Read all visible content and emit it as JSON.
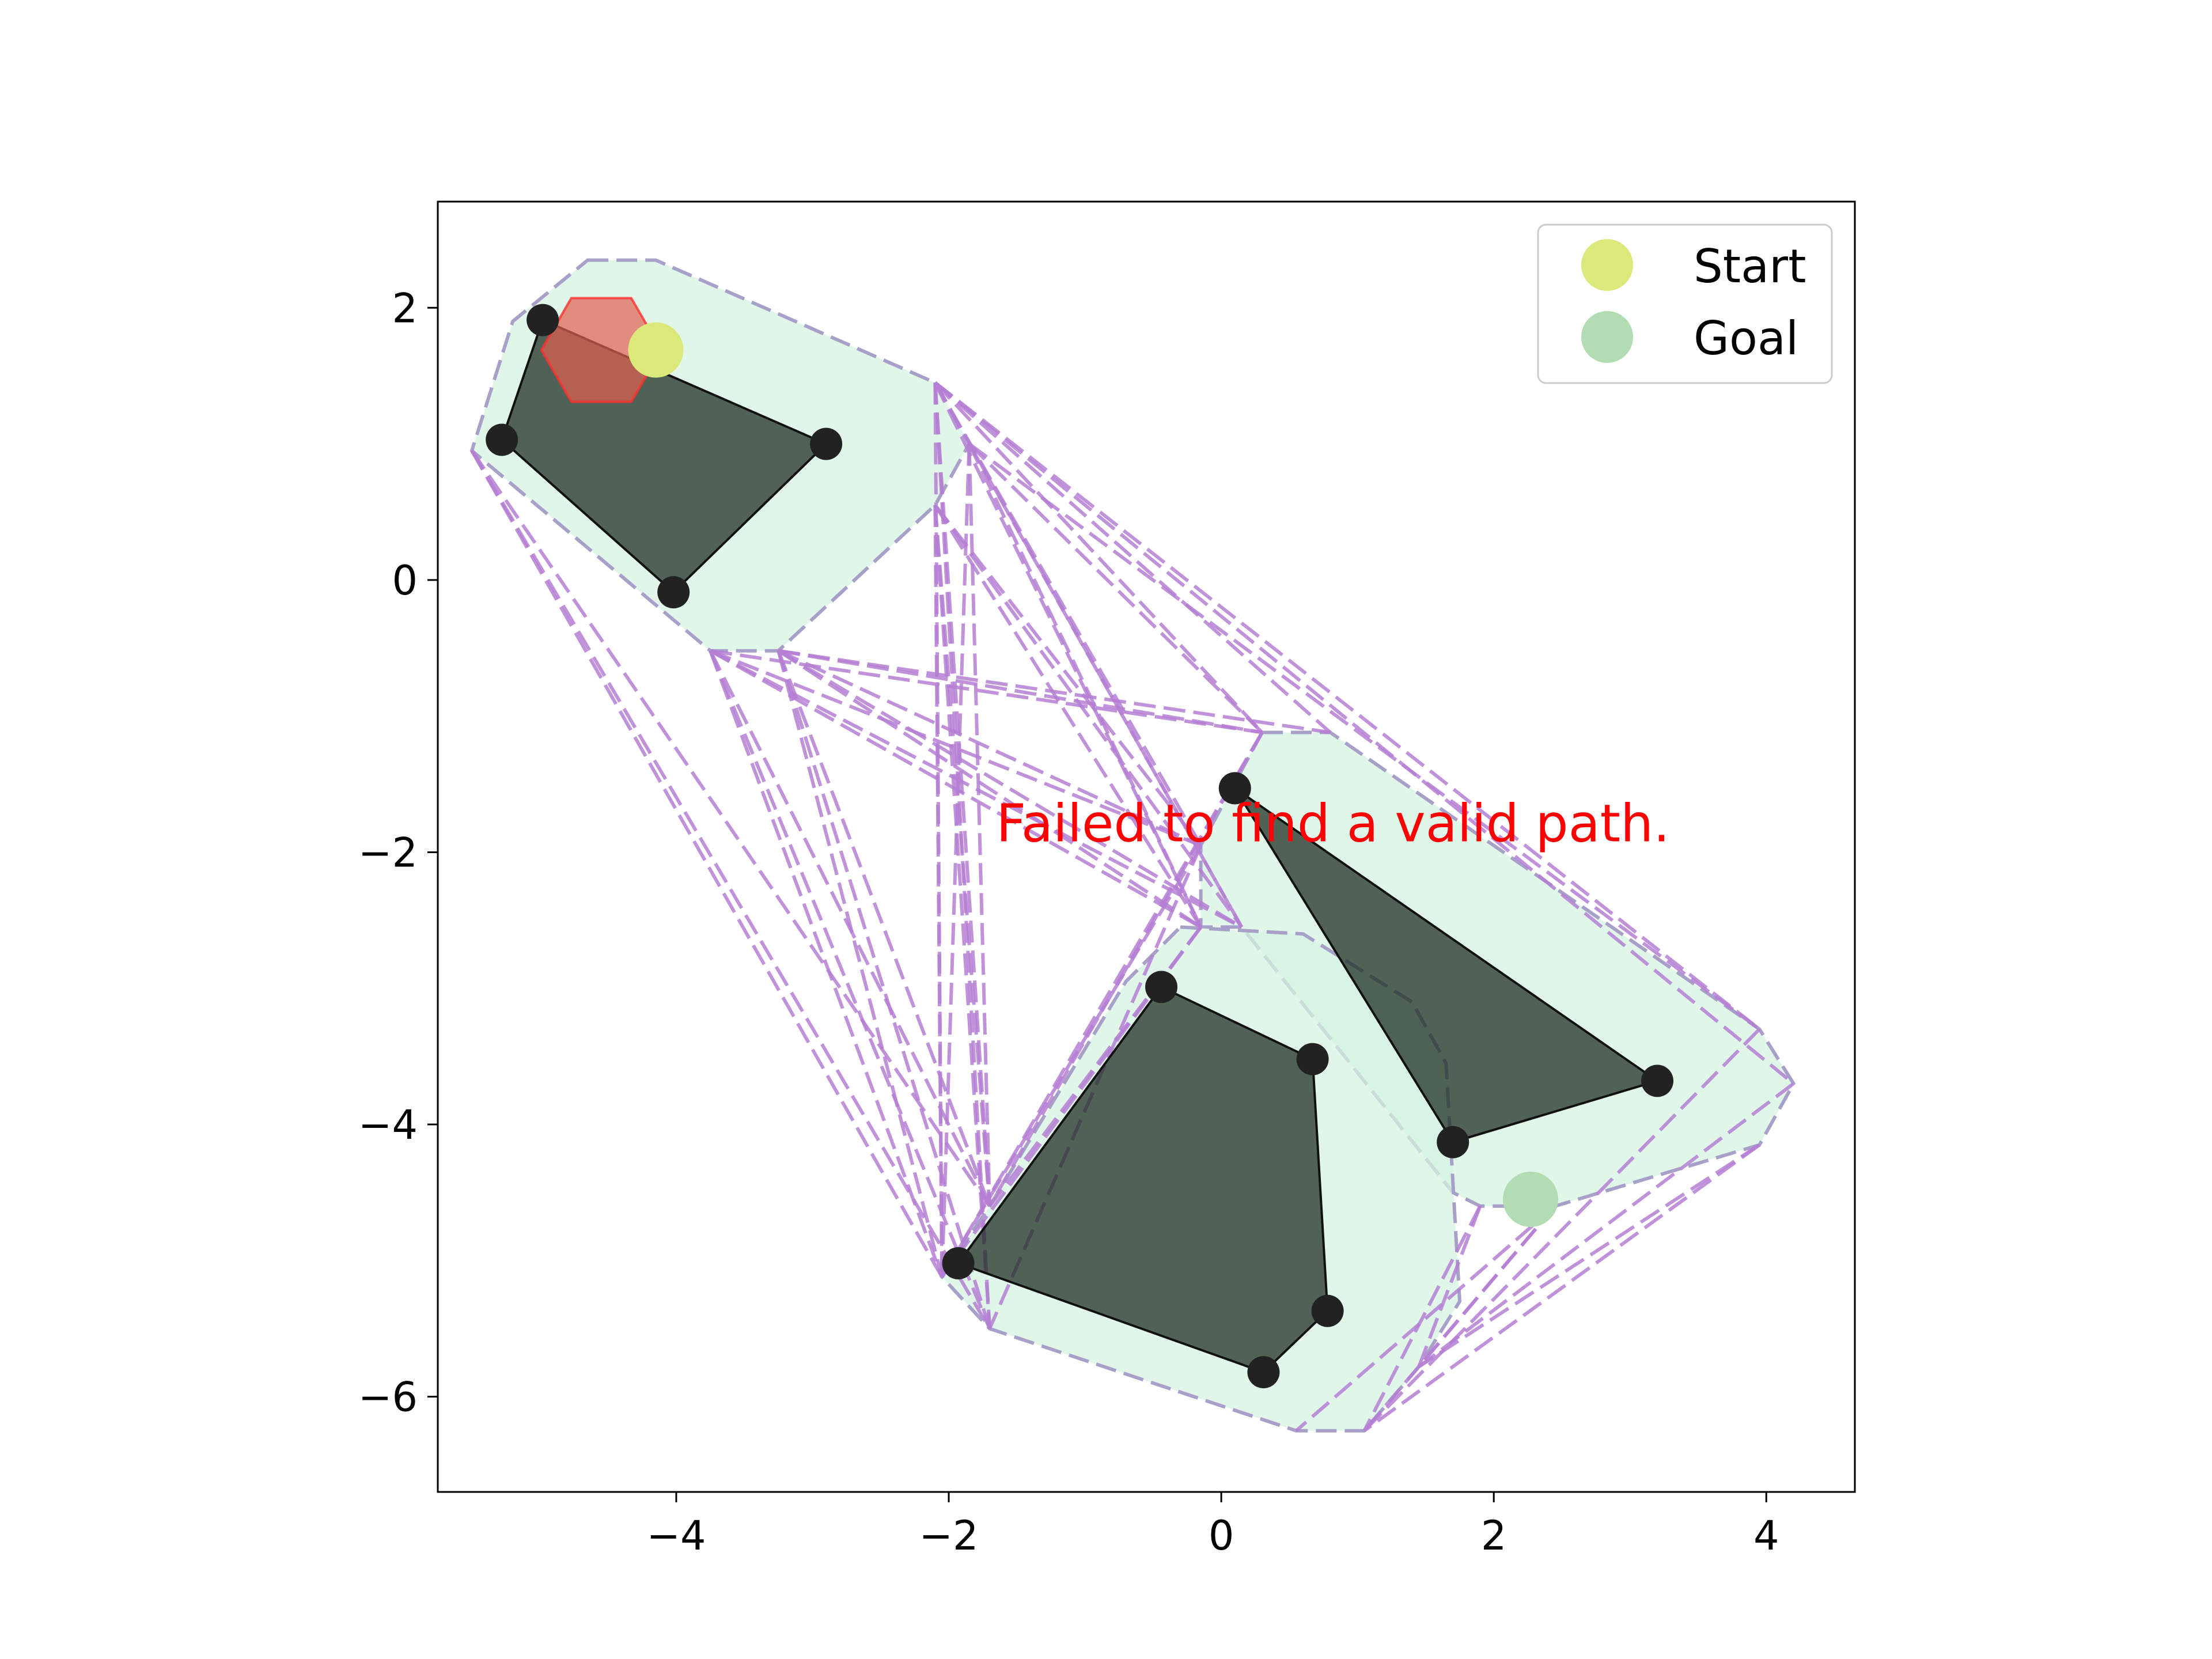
{
  "chart_data": {
    "type": "scatter",
    "title": "",
    "xlabel": "",
    "ylabel": "",
    "xlim": [
      -5.75,
      4.65
    ],
    "ylim": [
      -6.7,
      2.78
    ],
    "x_ticks": [
      {
        "v": -4,
        "label": "−4"
      },
      {
        "v": -2,
        "label": "−2"
      },
      {
        "v": 0,
        "label": "0"
      },
      {
        "v": 2,
        "label": "2"
      },
      {
        "v": 4,
        "label": "4"
      }
    ],
    "y_ticks": [
      {
        "v": 2,
        "label": "2"
      },
      {
        "v": 0,
        "label": "0"
      },
      {
        "v": -2,
        "label": "−2"
      },
      {
        "v": -4,
        "label": "−4"
      },
      {
        "v": -6,
        "label": "−6"
      }
    ],
    "colors": {
      "obstacle_fill": "#1c2a20",
      "obstacle_edge": "#111111",
      "vertex": "#222222",
      "inflated_fill": "#d4f3e2",
      "inflated_edge": "#a8a0c8",
      "graph_edge": "#b57fd4",
      "robot_fill": "#e06050",
      "robot_edge": "#ff3030",
      "start": "#dbe87a",
      "goal": "#b2dcb2",
      "message": "#ff0000"
    },
    "obstacles": [
      {
        "name": "obstacle-1",
        "points": [
          [
            -5.28,
            1.03
          ],
          [
            -4.98,
            1.91
          ],
          [
            -2.9,
            1.0
          ],
          [
            -4.02,
            -0.09
          ]
        ]
      },
      {
        "name": "obstacle-2",
        "points": [
          [
            0.1,
            -1.53
          ],
          [
            3.2,
            -3.68
          ],
          [
            1.7,
            -4.13
          ]
        ]
      },
      {
        "name": "obstacle-3",
        "points": [
          [
            -0.44,
            -2.99
          ],
          [
            0.67,
            -3.52
          ],
          [
            0.78,
            -5.37
          ],
          [
            0.31,
            -5.82
          ],
          [
            -1.93,
            -5.02
          ]
        ]
      }
    ],
    "inflated_regions": [
      {
        "name": "inflated-region-1",
        "points": [
          [
            -4.65,
            2.35
          ],
          [
            -4.15,
            2.35
          ],
          [
            -2.1,
            1.45
          ],
          [
            -1.85,
            1.0
          ],
          [
            -2.1,
            0.55
          ],
          [
            -3.25,
            -0.52
          ],
          [
            -3.75,
            -0.52
          ],
          [
            -5.5,
            0.95
          ],
          [
            -5.2,
            1.9
          ]
        ]
      },
      {
        "name": "inflated-region-2",
        "points": [
          [
            0.3,
            -1.12
          ],
          [
            0.8,
            -1.12
          ],
          [
            3.95,
            -3.3
          ],
          [
            4.2,
            -3.7
          ],
          [
            3.95,
            -4.15
          ],
          [
            2.45,
            -4.6
          ],
          [
            1.9,
            -4.6
          ],
          [
            1.7,
            -4.5
          ],
          [
            0.15,
            -2.55
          ],
          [
            -0.15,
            -2.55
          ],
          [
            -0.15,
            -1.95
          ]
        ]
      },
      {
        "name": "inflated-region-3",
        "points": [
          [
            -0.3,
            -2.55
          ],
          [
            0.6,
            -2.6
          ],
          [
            1.4,
            -3.1
          ],
          [
            1.65,
            -3.55
          ],
          [
            1.75,
            -5.3
          ],
          [
            1.45,
            -5.78
          ],
          [
            1.05,
            -6.25
          ],
          [
            0.55,
            -6.25
          ],
          [
            -1.7,
            -5.5
          ],
          [
            -2.05,
            -5.12
          ],
          [
            -1.7,
            -4.6
          ],
          [
            -0.7,
            -2.95
          ]
        ]
      }
    ],
    "graph_nodes": [
      [
        -4.65,
        2.35
      ],
      [
        -4.15,
        2.35
      ],
      [
        -2.1,
        1.45
      ],
      [
        -1.85,
        1.0
      ],
      [
        -2.1,
        0.55
      ],
      [
        -3.25,
        -0.52
      ],
      [
        -3.75,
        -0.52
      ],
      [
        -5.5,
        0.95
      ],
      [
        0.3,
        -1.12
      ],
      [
        0.8,
        -1.12
      ],
      [
        3.95,
        -3.3
      ],
      [
        4.2,
        -3.7
      ],
      [
        3.95,
        -4.15
      ],
      [
        2.45,
        -4.6
      ],
      [
        1.9,
        -4.6
      ],
      [
        0.15,
        -2.55
      ],
      [
        -0.15,
        -2.55
      ],
      [
        -0.15,
        -1.95
      ],
      [
        1.45,
        -5.78
      ],
      [
        1.05,
        -6.25
      ],
      [
        0.55,
        -6.25
      ],
      [
        -1.7,
        -5.5
      ],
      [
        -2.05,
        -5.12
      ],
      [
        -1.7,
        -4.6
      ]
    ],
    "graph_edges": [
      [
        2,
        8
      ],
      [
        2,
        9
      ],
      [
        2,
        10
      ],
      [
        2,
        11
      ],
      [
        2,
        16
      ],
      [
        2,
        17
      ],
      [
        2,
        21
      ],
      [
        2,
        22
      ],
      [
        2,
        23
      ],
      [
        2,
        15
      ],
      [
        3,
        8
      ],
      [
        3,
        10
      ],
      [
        3,
        15
      ],
      [
        3,
        16
      ],
      [
        3,
        22
      ],
      [
        3,
        23
      ],
      [
        4,
        15
      ],
      [
        4,
        16
      ],
      [
        4,
        21
      ],
      [
        4,
        22
      ],
      [
        4,
        23
      ],
      [
        4,
        17
      ],
      [
        5,
        8
      ],
      [
        5,
        9
      ],
      [
        5,
        15
      ],
      [
        5,
        16
      ],
      [
        5,
        17
      ],
      [
        5,
        22
      ],
      [
        5,
        23
      ],
      [
        5,
        21
      ],
      [
        6,
        8
      ],
      [
        6,
        15
      ],
      [
        6,
        16
      ],
      [
        6,
        17
      ],
      [
        6,
        22
      ],
      [
        6,
        23
      ],
      [
        6,
        21
      ],
      [
        7,
        22
      ],
      [
        7,
        23
      ],
      [
        7,
        21
      ],
      [
        8,
        22
      ],
      [
        8,
        23
      ],
      [
        16,
        22
      ],
      [
        16,
        23
      ],
      [
        17,
        21
      ],
      [
        17,
        22
      ],
      [
        13,
        19
      ],
      [
        13,
        18
      ],
      [
        13,
        20
      ],
      [
        12,
        18
      ],
      [
        12,
        19
      ],
      [
        14,
        18
      ],
      [
        14,
        19
      ],
      [
        11,
        18
      ],
      [
        10,
        19
      ]
    ],
    "robot": {
      "center": [
        -4.55,
        1.69
      ],
      "radius": 0.44
    },
    "start": [
      -4.15,
      1.69
    ],
    "goal": [
      2.27,
      -4.55
    ],
    "legend": {
      "placement": "top-right",
      "entries": [
        {
          "key": "start",
          "label": "Start"
        },
        {
          "key": "goal",
          "label": "Goal"
        }
      ]
    },
    "message": {
      "text": "Failed to find a valid path.",
      "x": 0.82,
      "y": -1.92
    }
  }
}
